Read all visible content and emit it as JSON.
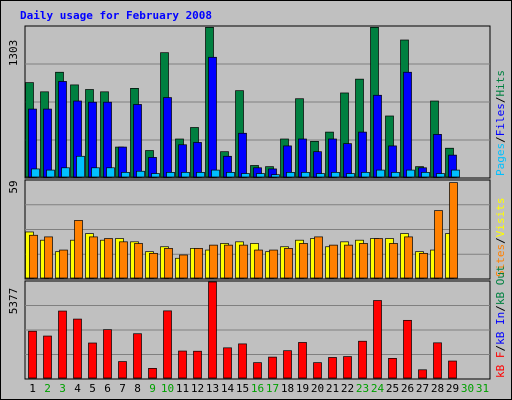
{
  "title": "Daily usage for February 2008",
  "colors": {
    "hits": "#008040",
    "files": "#0000ff",
    "pages": "#00c0ff",
    "visits": "#ffff00",
    "sites": "#ff8000",
    "kbout": "#008040",
    "kbin": "#0000ff",
    "kbf": "#ff0000",
    "weekday_label": "#000000",
    "weekend_label": "#00a000"
  },
  "legend": {
    "top": {
      "pages": "Pages",
      "sep1": "/",
      "files": "Files",
      "sep2": "/",
      "hits": "Hits"
    },
    "mid": {
      "visits": "Visits",
      "sep": "/",
      "sites": "Sites"
    },
    "bottom": {
      "kbout": "kB Out",
      "sep1": "/",
      "kbin": "kB In",
      "sep2": "/",
      "kbf": "kB F"
    }
  },
  "chart_data": {
    "type": "bar",
    "categories": [
      "1",
      "2",
      "3",
      "4",
      "5",
      "6",
      "7",
      "8",
      "9",
      "10",
      "11",
      "12",
      "13",
      "14",
      "15",
      "16",
      "17",
      "18",
      "19",
      "20",
      "21",
      "22",
      "23",
      "24",
      "25",
      "26",
      "27",
      "28",
      "29",
      "30",
      "31"
    ],
    "weekend_days": [
      "2",
      "3",
      "9",
      "10",
      "16",
      "17",
      "23",
      "24",
      "30",
      "31"
    ],
    "panels": [
      {
        "name": "top",
        "ymax_label": "1303",
        "ylim": [
          0,
          1303
        ],
        "series": [
          {
            "name": "Hits",
            "values": [
              820,
              740,
              910,
              800,
              760,
              740,
              260,
              770,
              230,
              1080,
              330,
              430,
              1300,
              220,
              750,
              100,
              90,
              330,
              680,
              310,
              390,
              730,
              850,
              1300,
              530,
              1190,
              90,
              660,
              250
            ]
          },
          {
            "name": "Files",
            "values": [
              590,
              590,
              830,
              660,
              650,
              650,
              260,
              630,
              170,
              690,
              280,
              300,
              1040,
              180,
              380,
              80,
              70,
              270,
              330,
              220,
              330,
              290,
              390,
              710,
              270,
              910,
              80,
              370,
              190
            ]
          },
          {
            "name": "Pages",
            "values": [
              70,
              60,
              80,
              180,
              80,
              80,
              40,
              50,
              30,
              40,
              40,
              40,
              60,
              40,
              30,
              30,
              20,
              40,
              40,
              30,
              40,
              30,
              40,
              60,
              40,
              60,
              40,
              30,
              60
            ]
          }
        ]
      },
      {
        "name": "mid",
        "ymax_label": "59",
        "ylim": [
          0,
          59
        ],
        "series": [
          {
            "name": "Visits",
            "values": [
              28,
              23,
              16,
              23,
              27,
              23,
              24,
              22,
              16,
              19,
              12,
              18,
              17,
              21,
              22,
              21,
              16,
              19,
              23,
              24,
              19,
              22,
              23,
              24,
              24,
              27,
              16,
              17,
              27
            ]
          },
          {
            "name": "Sites",
            "values": [
              26,
              25,
              17,
              35,
              25,
              24,
              22,
              21,
              15,
              18,
              14,
              18,
              20,
              20,
              20,
              17,
              17,
              18,
              21,
              25,
              20,
              20,
              21,
              24,
              21,
              25,
              15,
              41,
              58
            ]
          }
        ]
      },
      {
        "name": "bottom",
        "ymax_label": "5377",
        "ylim": [
          0,
          5377
        ],
        "series": [
          {
            "name": "kB F",
            "values": [
              2620,
              2350,
              3750,
              3300,
              1960,
              2710,
              920,
              2480,
              540,
              3760,
              1510,
              1500,
              5377,
              1690,
              1910,
              860,
              1170,
              1530,
              1990,
              860,
              1150,
              1200,
              2060,
              4340,
              1100,
              3230,
              460,
              1970,
              950
            ]
          }
        ]
      }
    ]
  }
}
